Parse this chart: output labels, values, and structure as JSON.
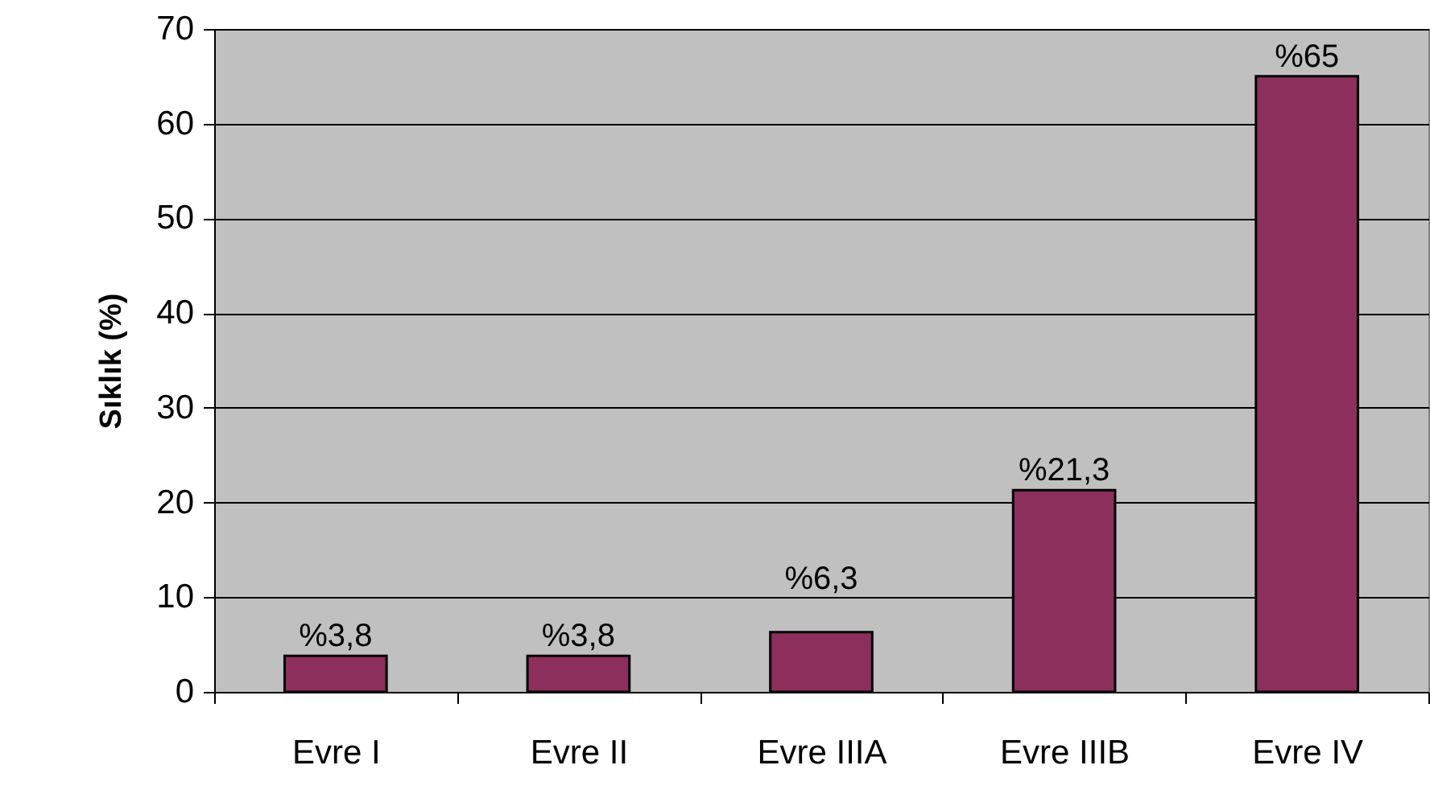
{
  "chart_data": {
    "type": "bar",
    "ylabel": "Sıklık (%)",
    "categories": [
      "Evre I",
      "Evre II",
      "Evre IIIA",
      "Evre IIIB",
      "Evre IV"
    ],
    "values": [
      3.8,
      3.8,
      6.3,
      21.3,
      65
    ],
    "value_labels": [
      "%3,8",
      "%3,8",
      "%6,3",
      "%21,3",
      "%65"
    ],
    "color": "#8c2f5c",
    "ylim": [
      0,
      70
    ],
    "yticks": [
      0,
      10,
      20,
      30,
      40,
      50,
      60,
      70
    ],
    "grid": "y"
  }
}
